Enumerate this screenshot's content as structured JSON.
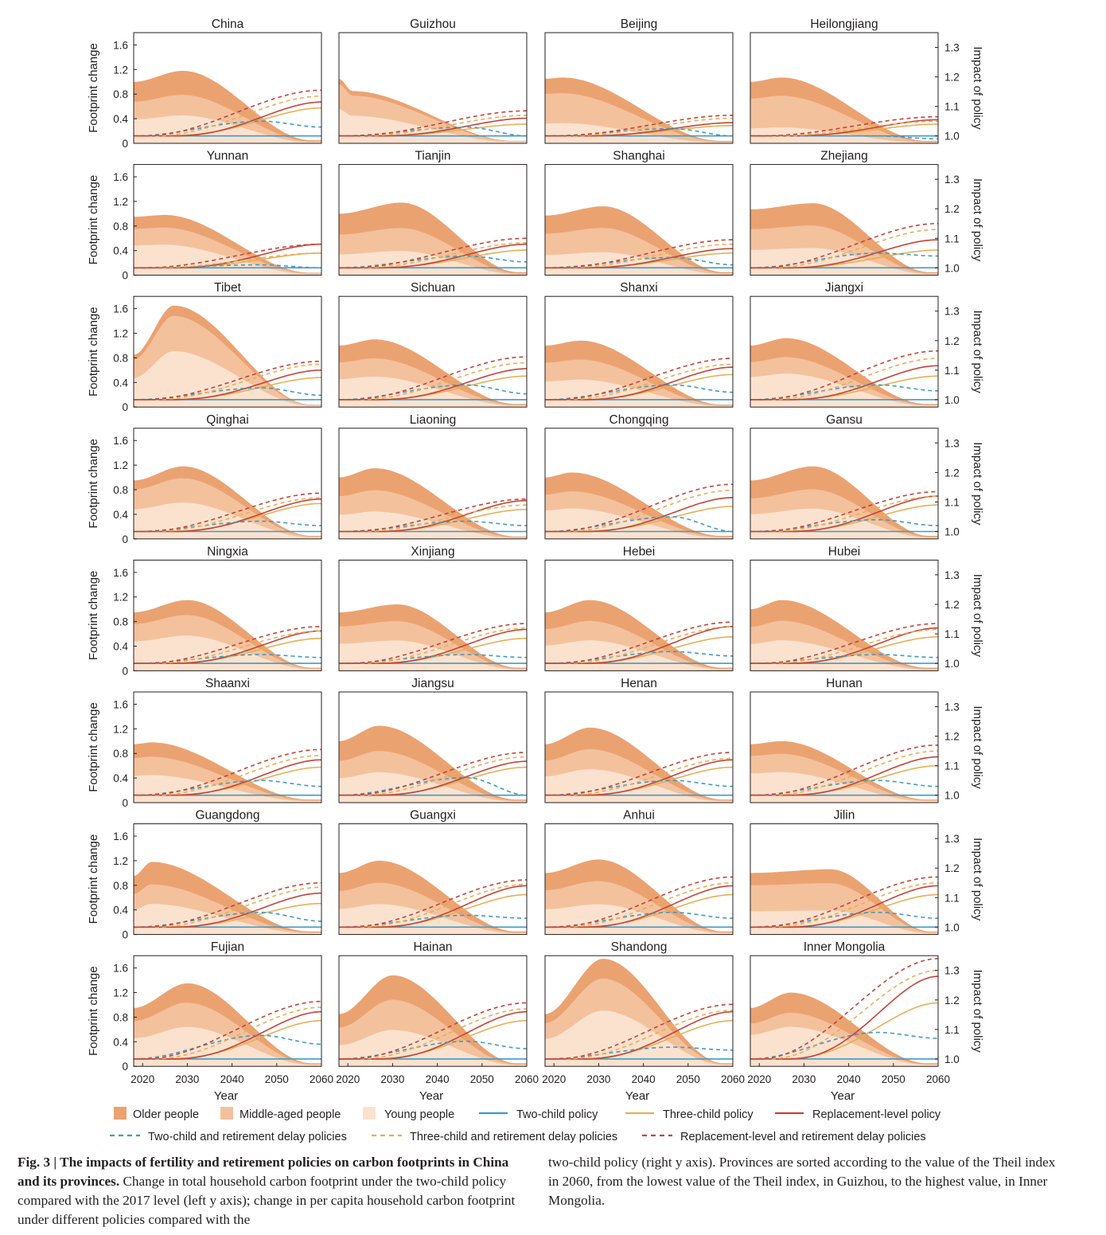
{
  "colors": {
    "older": "#eba271",
    "middle": "#f4c19d",
    "young": "#fbe2cf",
    "two_child": "#3d9bc6",
    "three_child": "#e5b054",
    "replacement": "#c64338",
    "frame": "#231f20"
  },
  "chart_data": {
    "type": "area",
    "panels_layout": "8 rows x 4 columns",
    "x": [
      2018,
      2060
    ],
    "x_ticks": [
      "2020",
      "2030",
      "2040",
      "2050",
      "2060"
    ],
    "xlabel": "Year",
    "ylabel_left": "Footprint change",
    "ylabel_right": "Impact of policy",
    "ylim_left": [
      0,
      1.8
    ],
    "ylim_right": [
      0.975,
      1.35
    ],
    "y_ticks_left": [
      "1.6",
      "1.2",
      "0.8",
      "0.4",
      "0"
    ],
    "y_ticks_right": [
      "1.3",
      "1.2",
      "1.1",
      "1.0"
    ],
    "legend": {
      "older": "Older people",
      "middle": "Middle-aged people",
      "young": "Young people",
      "two": "Two-child policy",
      "three": "Three-child policy",
      "repl": "Replacement-level policy",
      "two_rd": "Two-child and retirement delay policies",
      "three_rd": "Three-child and retirement delay policies",
      "repl_rd": "Replacement-level and retirement delay policies"
    },
    "panels": [
      {
        "name": "China",
        "peak": 1.18,
        "peak_year": 2029,
        "start": 1.0,
        "end": 0.05,
        "young": 0.46,
        "middle": 0.8,
        "repl": 1.115,
        "three": 1.095,
        "two_end": 1.03,
        "repl_rd": 1.155,
        "three_rd": 1.135,
        "two_rd_peak": 1.05
      },
      {
        "name": "Guizhou",
        "peak": 0.85,
        "peak_year": 2021,
        "start": 1.05,
        "end": 0.04,
        "young": 0.45,
        "middle": 0.78,
        "repl": 1.06,
        "three": 1.04,
        "two_end": 1.0,
        "repl_rd": 1.085,
        "three_rd": 1.07,
        "two_rd_peak": 1.03
      },
      {
        "name": "Beijing",
        "peak": 1.07,
        "peak_year": 2022,
        "start": 1.05,
        "end": 0.04,
        "young": 0.33,
        "middle": 0.82,
        "repl": 1.045,
        "three": 1.035,
        "two_end": 1.0,
        "repl_rd": 1.07,
        "three_rd": 1.06,
        "two_rd_peak": 1.025
      },
      {
        "name": "Heilongjiang",
        "peak": 1.07,
        "peak_year": 2025,
        "start": 1.0,
        "end": 0.04,
        "young": 0.26,
        "middle": 0.78,
        "repl": 1.055,
        "three": 1.04,
        "two_end": 0.99,
        "repl_rd": 1.065,
        "three_rd": 1.05,
        "two_rd_peak": 1.0
      },
      {
        "name": "Yunnan",
        "peak": 0.98,
        "peak_year": 2025,
        "start": 0.95,
        "end": 0.04,
        "young": 0.5,
        "middle": 0.78,
        "repl": 1.08,
        "three": 1.05,
        "two_end": 1.0,
        "repl_rd": 1.08,
        "three_rd": 1.05,
        "two_rd_peak": 1.01
      },
      {
        "name": "Tianjin",
        "peak": 1.18,
        "peak_year": 2032,
        "start": 1.0,
        "end": 0.05,
        "young": 0.4,
        "middle": 0.78,
        "repl": 1.08,
        "three": 1.06,
        "two_end": 1.02,
        "repl_rd": 1.1,
        "three_rd": 1.085,
        "two_rd_peak": 1.04
      },
      {
        "name": "Shanghai",
        "peak": 1.12,
        "peak_year": 2031,
        "start": 0.97,
        "end": 0.05,
        "young": 0.38,
        "middle": 0.78,
        "repl": 1.065,
        "three": 1.05,
        "two_end": 1.01,
        "repl_rd": 1.095,
        "three_rd": 1.08,
        "two_rd_peak": 1.035
      },
      {
        "name": "Zhejiang",
        "peak": 1.17,
        "peak_year": 2032,
        "start": 1.07,
        "end": 0.05,
        "young": 0.45,
        "middle": 0.82,
        "repl": 1.095,
        "three": 1.06,
        "two_end": 1.04,
        "repl_rd": 1.15,
        "three_rd": 1.13,
        "two_rd_peak": 1.05
      },
      {
        "name": "Tibet",
        "peak": 1.65,
        "peak_year": 2027,
        "start": 0.85,
        "end": 0.04,
        "young": 0.92,
        "middle": 1.5,
        "repl": 1.1,
        "three": 1.075,
        "two_end": 1.015,
        "repl_rd": 1.13,
        "three_rd": 1.12,
        "two_rd_peak": 1.04
      },
      {
        "name": "Sichuan",
        "peak": 1.1,
        "peak_year": 2026,
        "start": 1.0,
        "end": 0.05,
        "young": 0.5,
        "middle": 0.8,
        "repl": 1.105,
        "three": 1.08,
        "two_end": 1.02,
        "repl_rd": 1.145,
        "three_rd": 1.125,
        "two_rd_peak": 1.05
      },
      {
        "name": "Shanxi",
        "peak": 1.08,
        "peak_year": 2026,
        "start": 1.0,
        "end": 0.04,
        "young": 0.45,
        "middle": 0.78,
        "repl": 1.11,
        "three": 1.085,
        "two_end": 1.025,
        "repl_rd": 1.14,
        "three_rd": 1.12,
        "two_rd_peak": 1.05
      },
      {
        "name": "Jiangxi",
        "peak": 1.12,
        "peak_year": 2026,
        "start": 1.0,
        "end": 0.05,
        "young": 0.55,
        "middle": 0.82,
        "repl": 1.115,
        "three": 1.08,
        "two_end": 1.03,
        "repl_rd": 1.165,
        "three_rd": 1.14,
        "two_rd_peak": 1.05
      },
      {
        "name": "Qinghai",
        "peak": 1.18,
        "peak_year": 2029,
        "start": 0.95,
        "end": 0.05,
        "young": 0.6,
        "middle": 1.0,
        "repl": 1.11,
        "three": 1.095,
        "two_end": 1.02,
        "repl_rd": 1.13,
        "three_rd": 1.115,
        "two_rd_peak": 1.035
      },
      {
        "name": "Liaoning",
        "peak": 1.15,
        "peak_year": 2026,
        "start": 1.0,
        "end": 0.04,
        "young": 0.45,
        "middle": 0.8,
        "repl": 1.105,
        "three": 1.075,
        "two_end": 1.02,
        "repl_rd": 1.11,
        "three_rd": 1.09,
        "two_rd_peak": 1.035
      },
      {
        "name": "Chongqing",
        "peak": 1.08,
        "peak_year": 2024,
        "start": 1.0,
        "end": 0.05,
        "young": 0.5,
        "middle": 0.78,
        "repl": 1.115,
        "three": 1.085,
        "two_end": 1.0,
        "repl_rd": 1.16,
        "three_rd": 1.14,
        "two_rd_peak": 1.05
      },
      {
        "name": "Gansu",
        "peak": 1.18,
        "peak_year": 2032,
        "start": 0.95,
        "end": 0.05,
        "young": 0.5,
        "middle": 0.82,
        "repl": 1.12,
        "three": 1.09,
        "two_end": 1.02,
        "repl_rd": 1.135,
        "three_rd": 1.12,
        "two_rd_peak": 1.04
      },
      {
        "name": "Ningxia",
        "peak": 1.15,
        "peak_year": 2030,
        "start": 0.95,
        "end": 0.05,
        "young": 0.58,
        "middle": 0.92,
        "repl": 1.11,
        "three": 1.085,
        "two_end": 1.02,
        "repl_rd": 1.125,
        "three_rd": 1.11,
        "two_rd_peak": 1.03
      },
      {
        "name": "Xinjiang",
        "peak": 1.08,
        "peak_year": 2031,
        "start": 0.95,
        "end": 0.05,
        "young": 0.5,
        "middle": 0.82,
        "repl": 1.115,
        "three": 1.085,
        "two_end": 1.02,
        "repl_rd": 1.135,
        "three_rd": 1.12,
        "two_rd_peak": 1.03
      },
      {
        "name": "Hebei",
        "peak": 1.15,
        "peak_year": 2028,
        "start": 0.95,
        "end": 0.05,
        "young": 0.5,
        "middle": 0.82,
        "repl": 1.125,
        "three": 1.09,
        "two_end": 1.025,
        "repl_rd": 1.14,
        "three_rd": 1.125,
        "two_rd_peak": 1.04
      },
      {
        "name": "Hubei",
        "peak": 1.15,
        "peak_year": 2025,
        "start": 1.0,
        "end": 0.05,
        "young": 0.5,
        "middle": 0.82,
        "repl": 1.12,
        "three": 1.09,
        "two_end": 1.02,
        "repl_rd": 1.135,
        "three_rd": 1.115,
        "two_rd_peak": 1.03
      },
      {
        "name": "Shaanxi",
        "peak": 0.98,
        "peak_year": 2022,
        "start": 0.95,
        "end": 0.05,
        "young": 0.45,
        "middle": 0.75,
        "repl": 1.12,
        "three": 1.095,
        "two_end": 1.03,
        "repl_rd": 1.155,
        "three_rd": 1.135,
        "two_rd_peak": 1.05
      },
      {
        "name": "Jiangsu",
        "peak": 1.25,
        "peak_year": 2027,
        "start": 1.0,
        "end": 0.05,
        "young": 0.5,
        "middle": 0.85,
        "repl": 1.115,
        "three": 1.095,
        "two_end": 1.0,
        "repl_rd": 1.145,
        "three_rd": 1.13,
        "two_rd_peak": 1.06
      },
      {
        "name": "Henan",
        "peak": 1.22,
        "peak_year": 2028,
        "start": 0.95,
        "end": 0.05,
        "young": 0.55,
        "middle": 0.88,
        "repl": 1.12,
        "three": 1.095,
        "two_end": 1.03,
        "repl_rd": 1.145,
        "three_rd": 1.125,
        "two_rd_peak": 1.05
      },
      {
        "name": "Hunan",
        "peak": 1.0,
        "peak_year": 2025,
        "start": 0.95,
        "end": 0.05,
        "young": 0.5,
        "middle": 0.8,
        "repl": 1.13,
        "three": 1.1,
        "two_end": 1.03,
        "repl_rd": 1.17,
        "three_rd": 1.15,
        "two_rd_peak": 1.05
      },
      {
        "name": "Guangdong",
        "peak": 1.18,
        "peak_year": 2022,
        "start": 0.95,
        "end": 0.05,
        "young": 0.5,
        "middle": 0.82,
        "repl": 1.115,
        "three": 1.08,
        "two_end": 1.02,
        "repl_rd": 1.15,
        "three_rd": 1.135,
        "two_rd_peak": 1.05
      },
      {
        "name": "Guangxi",
        "peak": 1.2,
        "peak_year": 2027,
        "start": 1.0,
        "end": 0.05,
        "young": 0.5,
        "middle": 0.85,
        "repl": 1.14,
        "three": 1.11,
        "two_end": 1.03,
        "repl_rd": 1.16,
        "three_rd": 1.145,
        "two_rd_peak": 1.04
      },
      {
        "name": "Anhui",
        "peak": 1.22,
        "peak_year": 2030,
        "start": 1.0,
        "end": 0.05,
        "young": 0.5,
        "middle": 0.88,
        "repl": 1.14,
        "three": 1.11,
        "two_end": 1.03,
        "repl_rd": 1.17,
        "three_rd": 1.15,
        "two_rd_peak": 1.05
      },
      {
        "name": "Jilin",
        "peak": 1.06,
        "peak_year": 2036,
        "start": 1.0,
        "end": 0.05,
        "young": 0.4,
        "middle": 0.85,
        "repl": 1.14,
        "three": 1.11,
        "two_end": 1.03,
        "repl_rd": 1.17,
        "three_rd": 1.15,
        "two_rd_peak": 1.05
      },
      {
        "name": "Fujian",
        "peak": 1.35,
        "peak_year": 2030,
        "start": 0.95,
        "end": 0.05,
        "young": 0.65,
        "middle": 1.05,
        "repl": 1.16,
        "three": 1.13,
        "two_end": 1.05,
        "repl_rd": 1.195,
        "three_rd": 1.175,
        "two_rd_peak": 1.08
      },
      {
        "name": "Hainan",
        "peak": 1.48,
        "peak_year": 2030,
        "start": 0.85,
        "end": 0.05,
        "young": 0.6,
        "middle": 1.1,
        "repl": 1.16,
        "three": 1.13,
        "two_end": 1.035,
        "repl_rd": 1.19,
        "three_rd": 1.17,
        "two_rd_peak": 1.06
      },
      {
        "name": "Shandong",
        "peak": 1.75,
        "peak_year": 2031,
        "start": 0.85,
        "end": 0.05,
        "young": 0.92,
        "middle": 1.45,
        "repl": 1.16,
        "three": 1.13,
        "two_end": 1.03,
        "repl_rd": 1.185,
        "three_rd": 1.165,
        "two_rd_peak": 1.04
      },
      {
        "name": "Inner Mongolia",
        "peak": 1.2,
        "peak_year": 2027,
        "start": 0.95,
        "end": 0.05,
        "young": 0.65,
        "middle": 0.88,
        "repl": 1.28,
        "three": 1.19,
        "two_end": 1.07,
        "repl_rd": 1.34,
        "three_rd": 1.3,
        "two_rd_peak": 1.09
      }
    ]
  },
  "caption": {
    "lead": "Fig. 3 | The impacts of fertility and retirement policies on carbon footprints in China and its provinces.",
    "left_rest": " Change in total household carbon footprint under the two-child policy compared with the 2017 level (left y axis); change in per capita household carbon footprint under different policies compared with the",
    "right": "two-child policy (right y axis). Provinces are sorted according to the value of the Theil index in 2060, from the lowest value of the Theil index, in Guizhou, to the highest value, in Inner Mongolia."
  }
}
